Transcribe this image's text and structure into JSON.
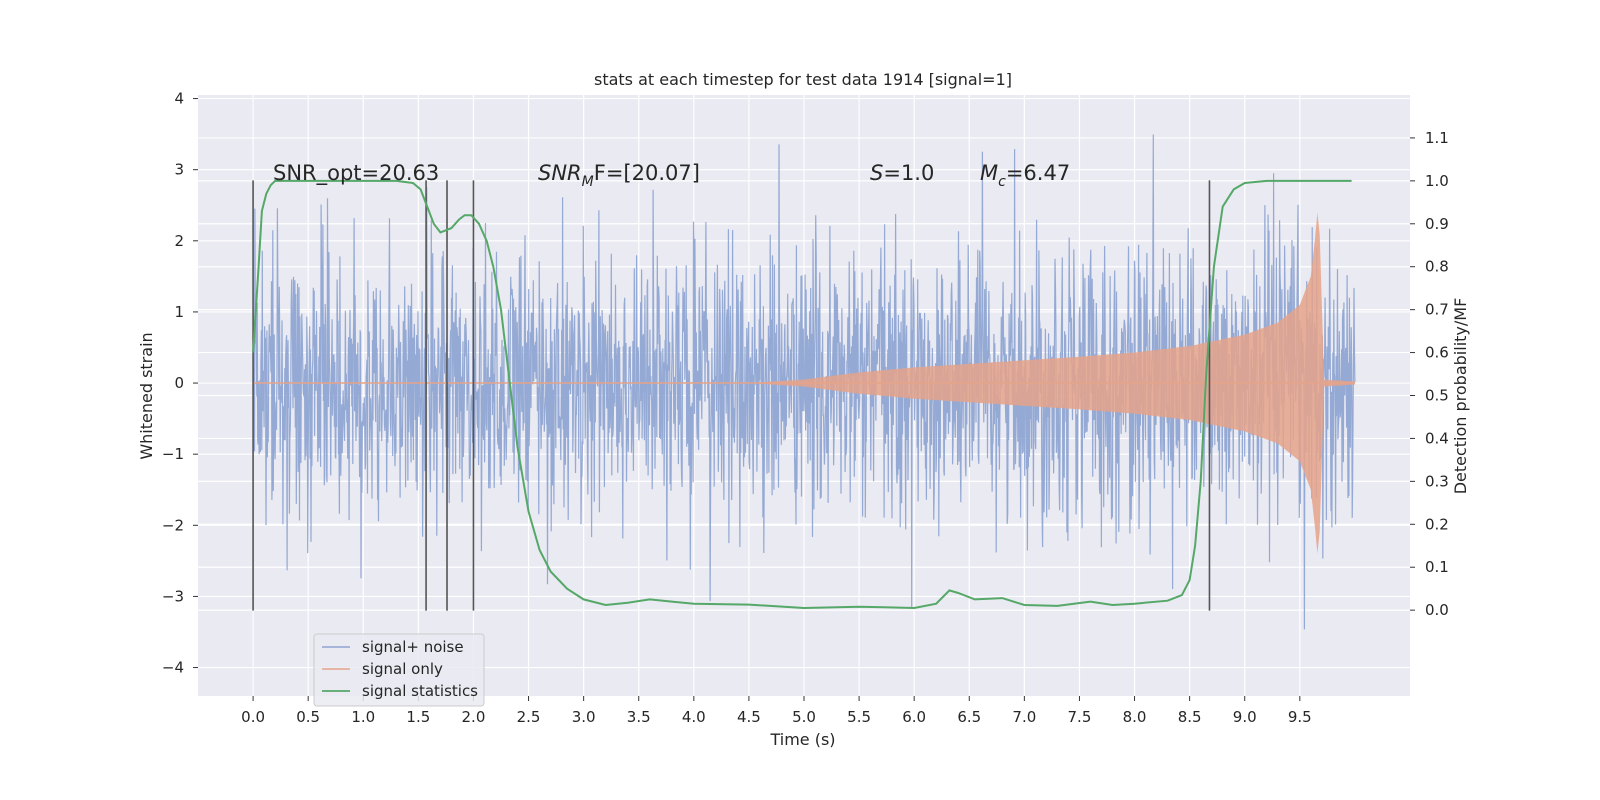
{
  "chart_data": {
    "type": "line",
    "title": "stats at each timestep for test data 1914 [signal=1]",
    "xlabel": "Time (s)",
    "ylabel_left": "Whitened strain",
    "ylabel_right": "Detection probability/MF",
    "xlim": [
      -0.5,
      10.5
    ],
    "ylim_left": [
      -4.4,
      4.05
    ],
    "ylim_right": [
      -0.2,
      1.2
    ],
    "x_ticks": [
      0.0,
      0.5,
      1.0,
      1.5,
      2.0,
      2.5,
      3.0,
      3.5,
      4.0,
      4.5,
      5.0,
      5.5,
      6.0,
      6.5,
      7.0,
      7.5,
      8.0,
      8.5,
      9.0,
      9.5
    ],
    "x_tick_labels": [
      "0.0",
      "0.5",
      "1.0",
      "1.5",
      "2.0",
      "2.5",
      "3.0",
      "3.5",
      "4.0",
      "4.5",
      "5.0",
      "5.5",
      "6.0",
      "6.5",
      "7.0",
      "7.5",
      "8.0",
      "8.5",
      "9.0",
      "9.5"
    ],
    "y_left_ticks": [
      -4,
      -3,
      -2,
      -1,
      0,
      1,
      2,
      3,
      4
    ],
    "y_left_tick_labels": [
      "−4",
      "−3",
      "−2",
      "−1",
      "0",
      "1",
      "2",
      "3",
      "4"
    ],
    "y_right_ticks": [
      0.0,
      0.1,
      0.2,
      0.3,
      0.4,
      0.5,
      0.6,
      0.7,
      0.8,
      0.9,
      1.0,
      1.1
    ],
    "y_right_tick_labels": [
      "0.0",
      "0.1",
      "0.2",
      "0.3",
      "0.4",
      "0.5",
      "0.6",
      "0.7",
      "0.8",
      "0.9",
      "1.0",
      "1.1"
    ],
    "grid": true,
    "legend_position": "lower-left",
    "annotations": {
      "snr_opt": "SNR_opt=20.63",
      "snr_mf_base": "SNR",
      "snr_mf_sub": "M",
      "snr_mf_rest": "F=[20.07]",
      "s_italic": "S",
      "s_rest": "=1.0",
      "mc_base": "M",
      "mc_sub": "c",
      "mc_rest": "=6.47"
    },
    "vertical_markers": [
      0.0,
      1.57,
      1.76,
      2.0,
      8.68
    ],
    "series": [
      {
        "name": "signal+ noise",
        "axis": "left",
        "color": "#8fa5d2",
        "style": "dense noise around zero, roughly symmetric, amplitude mostly within ±2.5, occasional peaks to ±3.6, x from 0.0 to 10.0"
      },
      {
        "name": "signal only",
        "axis": "left",
        "color": "#e8a58d",
        "envelope": {
          "x": [
            0.0,
            4.5,
            5.0,
            5.5,
            6.0,
            6.5,
            7.0,
            7.5,
            8.0,
            8.5,
            9.0,
            9.3,
            9.5,
            9.6,
            9.65,
            9.67,
            9.72,
            10.0
          ],
          "amp": [
            0.0,
            0.0,
            0.05,
            0.15,
            0.22,
            0.27,
            0.32,
            0.37,
            0.43,
            0.52,
            0.68,
            0.85,
            1.1,
            1.5,
            2.2,
            2.6,
            0.05,
            0.02
          ]
        }
      },
      {
        "name": "signal statistics",
        "axis": "right",
        "color": "#55a868",
        "x": [
          0.0,
          0.05,
          0.08,
          0.12,
          0.16,
          0.2,
          0.3,
          0.5,
          1.0,
          1.3,
          1.45,
          1.52,
          1.58,
          1.64,
          1.7,
          1.8,
          1.87,
          1.92,
          1.98,
          2.05,
          2.12,
          2.18,
          2.25,
          2.32,
          2.4,
          2.5,
          2.6,
          2.7,
          2.85,
          3.0,
          3.2,
          3.4,
          3.6,
          3.8,
          4.0,
          4.5,
          5.0,
          5.5,
          6.0,
          6.2,
          6.32,
          6.4,
          6.55,
          6.8,
          7.0,
          7.3,
          7.6,
          7.8,
          8.0,
          8.3,
          8.43,
          8.5,
          8.55,
          8.6,
          8.65,
          8.72,
          8.8,
          8.9,
          9.0,
          9.2,
          9.5,
          9.97
        ],
        "values": [
          0.6,
          0.8,
          0.93,
          0.97,
          0.99,
          1.0,
          1.0,
          1.0,
          1.0,
          1.0,
          0.995,
          0.98,
          0.94,
          0.9,
          0.88,
          0.89,
          0.91,
          0.92,
          0.92,
          0.9,
          0.86,
          0.8,
          0.7,
          0.55,
          0.38,
          0.23,
          0.14,
          0.09,
          0.05,
          0.025,
          0.012,
          0.017,
          0.025,
          0.02,
          0.015,
          0.013,
          0.005,
          0.008,
          0.005,
          0.015,
          0.046,
          0.04,
          0.025,
          0.028,
          0.012,
          0.01,
          0.02,
          0.012,
          0.015,
          0.022,
          0.035,
          0.07,
          0.15,
          0.3,
          0.55,
          0.8,
          0.94,
          0.98,
          0.995,
          1.0,
          1.0,
          1.0
        ]
      }
    ]
  }
}
